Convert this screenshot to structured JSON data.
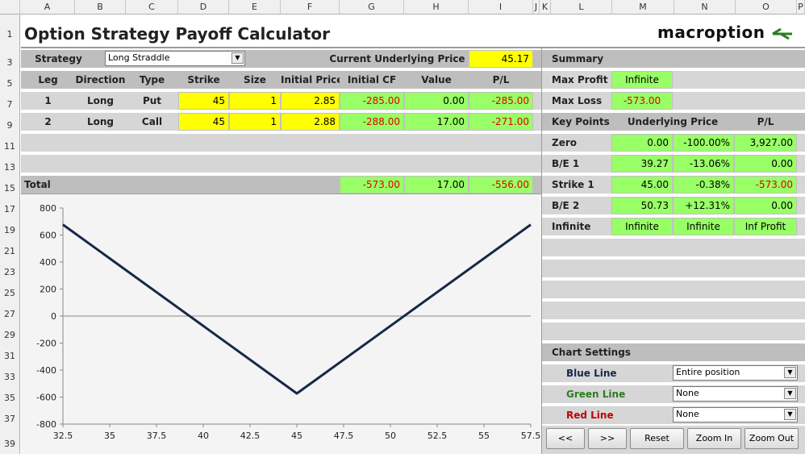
{
  "columns": [
    "A",
    "B",
    "C",
    "D",
    "E",
    "F",
    "G",
    "H",
    "I",
    "J",
    "K",
    "L",
    "M",
    "N",
    "O",
    "P"
  ],
  "rows": [
    "1",
    "3",
    "5",
    "7",
    "9",
    "11",
    "13",
    "15",
    "17",
    "19",
    "21",
    "23",
    "25",
    "27",
    "29",
    "31",
    "33",
    "35",
    "37",
    "39"
  ],
  "title": "Option Strategy Payoff Calculator",
  "logo": "macroption",
  "strategy_label": "Strategy",
  "strategy_value": "Long Straddle",
  "underlying_label": "Current Underlying Price",
  "underlying_value": "45.17",
  "legs_header": [
    "Leg",
    "Direction",
    "Type",
    "Strike",
    "Size",
    "Initial Price",
    "Initial CF",
    "Value",
    "P/L"
  ],
  "legs": [
    {
      "leg": "1",
      "direction": "Long",
      "type": "Put",
      "strike": "45",
      "size": "1",
      "price": "2.85",
      "cf": "-285.00",
      "value": "0.00",
      "pl": "-285.00"
    },
    {
      "leg": "2",
      "direction": "Long",
      "type": "Call",
      "strike": "45",
      "size": "1",
      "price": "2.88",
      "cf": "-288.00",
      "value": "17.00",
      "pl": "-271.00"
    }
  ],
  "total": {
    "label": "Total",
    "cf": "-573.00",
    "value": "17.00",
    "pl": "-556.00"
  },
  "summary": {
    "title": "Summary",
    "max_profit_label": "Max Profit",
    "max_profit": "Infinite",
    "max_loss_label": "Max Loss",
    "max_loss": "-573.00"
  },
  "key_points": {
    "headers": [
      "Key Points",
      "Underlying Price",
      "P/L"
    ],
    "rows": [
      {
        "label": "Zero",
        "price": "0.00",
        "pct": "-100.00%",
        "pl": "3,927.00"
      },
      {
        "label": "B/E 1",
        "price": "39.27",
        "pct": "-13.06%",
        "pl": "0.00"
      },
      {
        "label": "Strike 1",
        "price": "45.00",
        "pct": "-0.38%",
        "pl": "-573.00"
      },
      {
        "label": "B/E 2",
        "price": "50.73",
        "pct": "+12.31%",
        "pl": "0.00"
      },
      {
        "label": "Infinite",
        "price": "Infinite",
        "pct": "Infinite",
        "pl": "Inf Profit"
      }
    ]
  },
  "chart_settings": {
    "title": "Chart Settings",
    "blue_label": "Blue Line",
    "blue_value": "Entire position",
    "green_label": "Green Line",
    "green_value": "None",
    "red_label": "Red Line",
    "red_value": "None",
    "buttons": [
      "<<",
      ">>",
      "Reset",
      "Zoom In",
      "Zoom Out"
    ]
  },
  "colors": {
    "blue": "#17284a",
    "green": "#2a7d1f",
    "red": "#c00000",
    "input": "#ffff00",
    "output": "#99ff66"
  },
  "chart_data": {
    "type": "line",
    "x": [
      32.5,
      45,
      57.5
    ],
    "series": [
      {
        "values": [
          677,
          -573,
          677
        ]
      }
    ],
    "xticks": [
      "32.5",
      "35",
      "37.5",
      "40",
      "42.5",
      "45",
      "47.5",
      "50",
      "52.5",
      "55",
      "57.5"
    ],
    "yticks": [
      "800",
      "600",
      "400",
      "200",
      "0",
      "-200",
      "-400",
      "-600",
      "-800"
    ],
    "xlim": [
      32.5,
      57.5
    ],
    "ylim": [
      -800,
      800
    ],
    "grid": false
  }
}
